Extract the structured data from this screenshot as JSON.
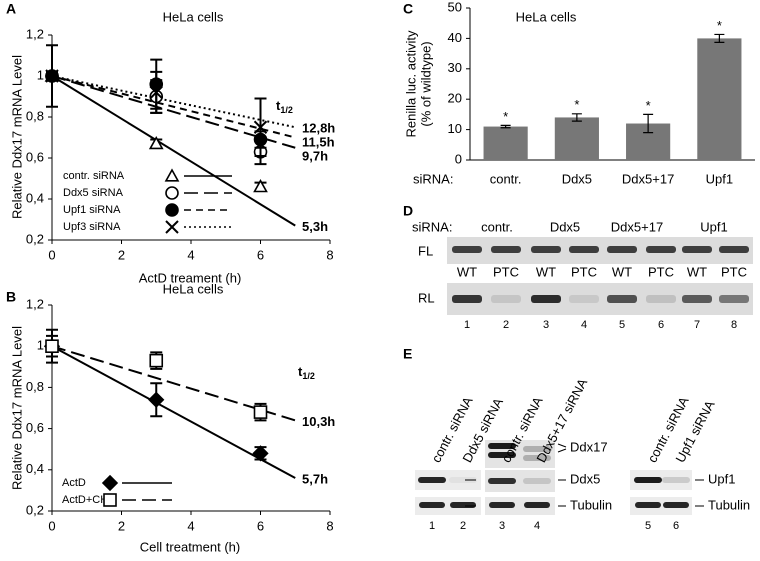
{
  "chart_data": [
    {
      "panel": "A",
      "type": "scatter",
      "title": "HeLa cells",
      "x_label": "ActD treament (h)",
      "y_label": "Relative Ddx17 mRNA Level",
      "xlim": [
        0,
        8
      ],
      "xticks": [
        0,
        2,
        4,
        6,
        8
      ],
      "ylim": [
        0.2,
        1.2
      ],
      "yticks": [
        {
          "value": 0.2,
          "label": "0,2"
        },
        {
          "value": 0.4,
          "label": "0,4"
        },
        {
          "value": 0.6,
          "label": "0,6"
        },
        {
          "value": 0.8,
          "label": "0,8"
        },
        1,
        {
          "value": 1.2,
          "label": "1,2"
        }
      ],
      "x": [
        0,
        3,
        6
      ],
      "half_life_label": {
        "symbol": "t",
        "subscript": "1/2"
      },
      "series": [
        {
          "name": "contr. siRNA",
          "marker": "triangle",
          "dash": "solid",
          "color": "#000000",
          "values": [
            1,
            0.67,
            0.46
          ],
          "errors": [
            0.15,
            0.02,
            0.02
          ],
          "fit_x": [
            0,
            7
          ],
          "fit_values": [
            1,
            0.27
          ],
          "half_life": "5,3h"
        },
        {
          "name": "Ddx5 siRNA",
          "marker": "circle-open",
          "dash": "long-dash",
          "color": "#000000",
          "values": [
            1,
            0.9,
            0.63
          ],
          "errors": [
            0.02,
            0.08,
            0.06
          ],
          "fit_x": [
            0,
            7
          ],
          "fit_values": [
            1,
            0.65
          ],
          "half_life": "9,7h"
        },
        {
          "name": "Upf1 siRNA",
          "marker": "circle-filled",
          "dash": "dashed",
          "color": "#000000",
          "values": [
            1,
            0.96,
            0.69
          ],
          "errors": [
            0.02,
            0.12,
            0.04
          ],
          "fit_x": [
            0,
            7
          ],
          "fit_values": [
            1,
            0.7
          ],
          "half_life": "11,5h"
        },
        {
          "name": "Upf3 siRNA",
          "marker": "x",
          "dash": "dotted",
          "color": "#000000",
          "values": [
            1,
            0.92,
            0.75
          ],
          "errors": [
            0.02,
            0.1,
            0.14
          ],
          "fit_x": [
            0,
            7
          ],
          "fit_values": [
            1,
            0.75
          ],
          "half_life": "12,8h"
        }
      ]
    },
    {
      "panel": "B",
      "type": "scatter",
      "title": "HeLa cells",
      "x_label": "Cell treatment (h)",
      "y_label": "Relative Ddx17 mRNA Level",
      "xlim": [
        0,
        8
      ],
      "xticks": [
        0,
        2,
        4,
        6,
        8
      ],
      "ylim": [
        0.2,
        1.2
      ],
      "yticks": [
        {
          "value": 0.2,
          "label": "0,2"
        },
        {
          "value": 0.4,
          "label": "0,4"
        },
        {
          "value": 0.6,
          "label": "0,6"
        },
        {
          "value": 0.8,
          "label": "0,8"
        },
        1,
        {
          "value": 1.2,
          "label": "1,2"
        }
      ],
      "x": [
        0,
        3,
        6
      ],
      "half_life_label": {
        "symbol": "t",
        "subscript": "1/2"
      },
      "series": [
        {
          "name": "ActD",
          "marker": "diamond-filled",
          "dash": "solid",
          "color": "#000000",
          "values": [
            1,
            0.74,
            0.48
          ],
          "errors": [
            0.08,
            0.08,
            0.03
          ],
          "fit_x": [
            0,
            7
          ],
          "fit_values": [
            1,
            0.36
          ],
          "half_life": "5,7h"
        },
        {
          "name": "ActD+CHX",
          "marker": "square-open",
          "dash": "long-dash",
          "color": "#000000",
          "values": [
            1,
            0.93,
            0.68
          ],
          "errors": [
            0.05,
            0.04,
            0.04
          ],
          "fit_x": [
            0,
            7
          ],
          "fit_values": [
            1,
            0.64
          ],
          "half_life": "10,3h"
        }
      ]
    },
    {
      "panel": "C",
      "type": "bar",
      "title": "HeLa cells",
      "y_label": [
        "Renilla luc. activity",
        "(% of wildtype)"
      ],
      "x_label": "siRNA:",
      "categories": [
        "contr.",
        "Ddx5",
        "Ddx5+17",
        "Upf1"
      ],
      "values": [
        11,
        14,
        12,
        40
      ],
      "errors": [
        0.4,
        1.2,
        3,
        1.3
      ],
      "annotations": [
        "*",
        "*",
        "*",
        "*"
      ],
      "color": "#777777",
      "ylim": [
        0,
        50
      ],
      "yticks": [
        0,
        10,
        20,
        30,
        40,
        50
      ]
    }
  ],
  "panel_d": {
    "panel": "D",
    "row_label": "siRNA:",
    "groups": [
      "contr.",
      "Ddx5",
      "Ddx5+17",
      "Upf1"
    ],
    "blots": [
      "FL",
      "RL"
    ],
    "lane_types": [
      "WT",
      "PTC",
      "WT",
      "PTC",
      "WT",
      "PTC",
      "WT",
      "PTC"
    ],
    "lanes": [
      "1",
      "2",
      "3",
      "4",
      "5",
      "6",
      "7",
      "8"
    ]
  },
  "panel_e": {
    "panel": "E",
    "lane_labels": [
      "contr. siRNA",
      "Ddx5 siRNA",
      "contr. siRNA",
      "Ddx5+17 siRNA",
      "contr. siRNA",
      "Upf1 siRNA"
    ],
    "lanes": [
      "1",
      "2",
      "3",
      "4",
      "5",
      "6"
    ],
    "proteins": [
      "Ddx17",
      "Ddx5",
      "Tubulin",
      "Upf1",
      "Tubulin"
    ]
  }
}
